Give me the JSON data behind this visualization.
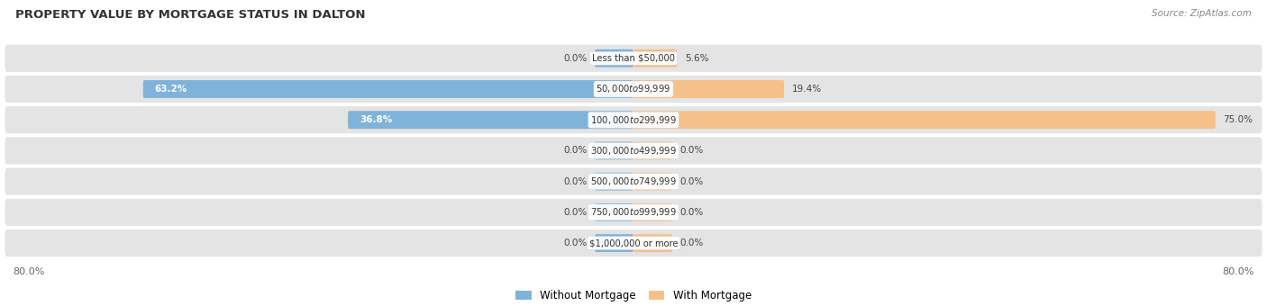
{
  "title": "PROPERTY VALUE BY MORTGAGE STATUS IN DALTON",
  "source": "Source: ZipAtlas.com",
  "categories": [
    "Less than $50,000",
    "$50,000 to $99,999",
    "$100,000 to $299,999",
    "$300,000 to $499,999",
    "$500,000 to $749,999",
    "$750,000 to $999,999",
    "$1,000,000 or more"
  ],
  "without_mortgage": [
    0.0,
    63.2,
    36.8,
    0.0,
    0.0,
    0.0,
    0.0
  ],
  "with_mortgage": [
    5.6,
    19.4,
    75.0,
    0.0,
    0.0,
    0.0,
    0.0
  ],
  "color_without": "#7fb3d9",
  "color_with": "#f5c08a",
  "xlim": 80.0,
  "stub_size": 5.0,
  "bg_bar": "#e4e4e4",
  "bg_figure": "#ffffff",
  "label_color": "#444444",
  "label_inside_color": "#ffffff"
}
